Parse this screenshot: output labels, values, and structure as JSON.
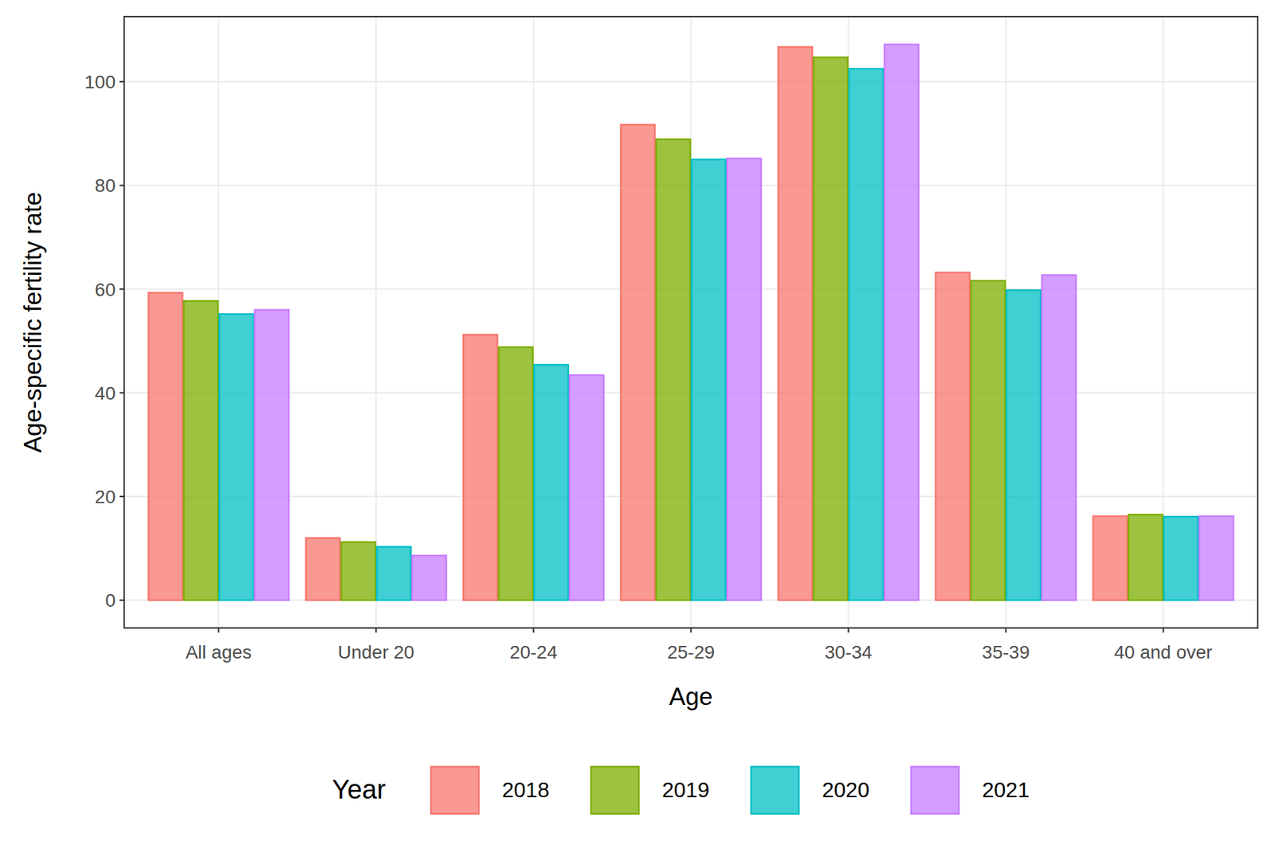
{
  "chart_data": {
    "type": "bar",
    "x_label": "Age",
    "y_label": "Age-specific fertility rate",
    "legend_title": "Year",
    "legend": "bottom",
    "grid": true,
    "categories": [
      "All ages",
      "Under 20",
      "20-24",
      "25-29",
      "30-34",
      "35-39",
      "40 and over"
    ],
    "series": [
      {
        "name": "2018",
        "color": "#F8766D",
        "values": [
          59.3,
          12.0,
          51.2,
          91.7,
          106.7,
          63.2,
          16.2
        ]
      },
      {
        "name": "2019",
        "color": "#7CAE00",
        "values": [
          57.7,
          11.2,
          48.8,
          88.9,
          104.7,
          61.6,
          16.5
        ]
      },
      {
        "name": "2020",
        "color": "#00BFC4",
        "values": [
          55.2,
          10.3,
          45.4,
          85.0,
          102.5,
          59.8,
          16.1
        ]
      },
      {
        "name": "2021",
        "color": "#C77CFF",
        "values": [
          56.0,
          8.6,
          43.4,
          85.2,
          107.2,
          62.7,
          16.2
        ]
      }
    ],
    "ylim": [
      -5.36,
      112.56
    ],
    "yticks": [
      0,
      20,
      40,
      60,
      80,
      100
    ]
  }
}
